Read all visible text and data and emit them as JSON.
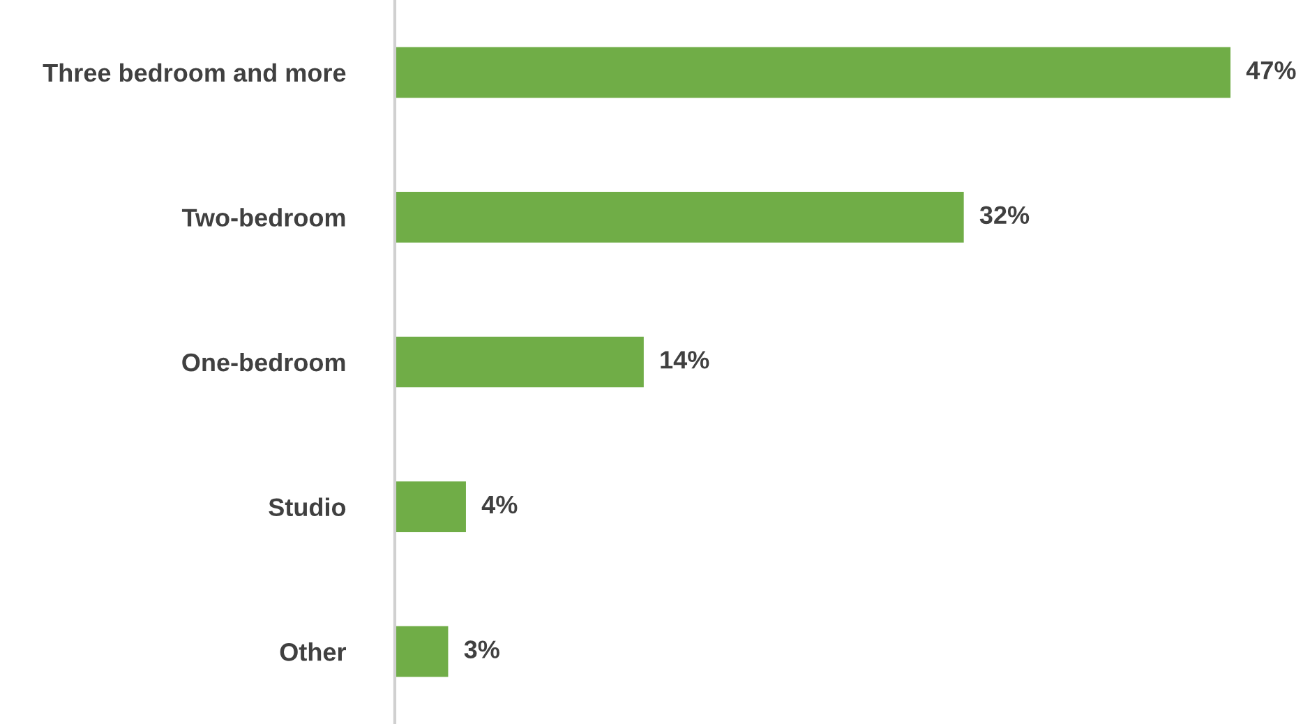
{
  "chart_data": {
    "type": "bar",
    "orientation": "horizontal",
    "categories": [
      "Three bedroom and more",
      "Two-bedroom",
      "One-bedroom",
      "Studio",
      "Other"
    ],
    "values": [
      47,
      32,
      14,
      4,
      3
    ],
    "value_labels": [
      "47%",
      "32%",
      "14%",
      "4%",
      "3%"
    ],
    "color": "#70ad47",
    "grid": false,
    "legend": false
  }
}
